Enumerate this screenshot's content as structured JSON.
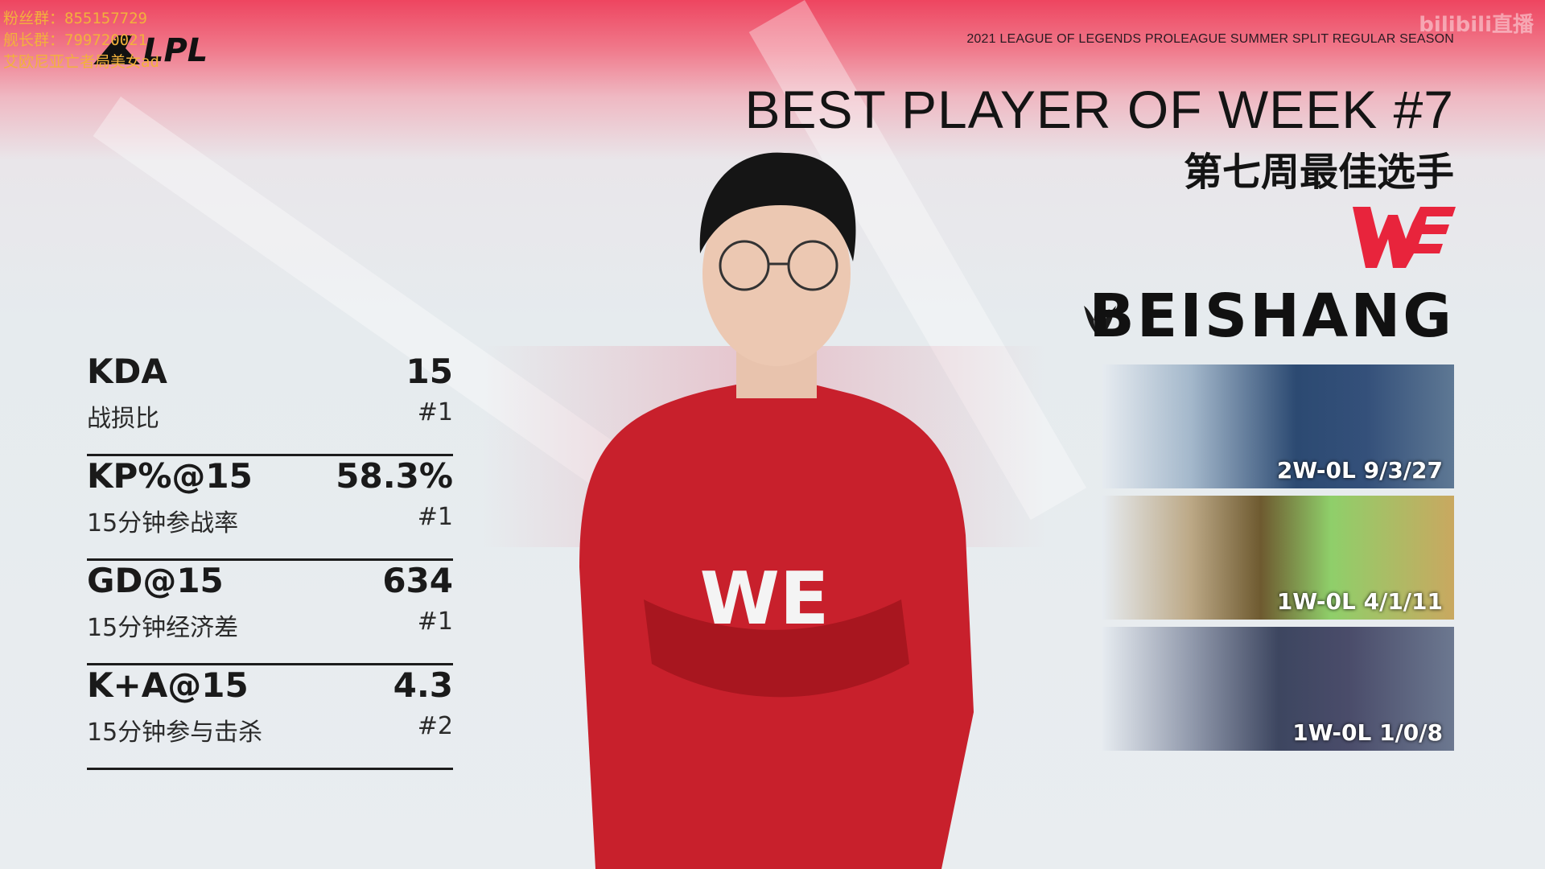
{
  "stream_overlay": [
    "粉丝群：855157729",
    "舰长群：799720021",
    "艾欧尼亚亡者局美女ad"
  ],
  "watermark": "bilibili直播",
  "logo": "LPL",
  "season": "2021 LEAGUE OF LEGENDS PROLEAGUE SUMMER SPLIT REGULAR SEASON",
  "title": "BEST PLAYER OF WEEK #7",
  "subtitle": "第七周最佳选手",
  "team_logo": "WE",
  "player": {
    "name": "BEISHANG",
    "role_icon": "jungle-icon"
  },
  "colors": {
    "accent": "#e8243c",
    "text": "#141414"
  },
  "stats": [
    {
      "label": "KDA",
      "value": "15",
      "sub": "战损比",
      "rank": "#1"
    },
    {
      "label": "KP%@15",
      "value": "58.3%",
      "sub": "15分钟参战率",
      "rank": "#1"
    },
    {
      "label": "GD@15",
      "value": "634",
      "sub": "15分钟经济差",
      "rank": "#1"
    },
    {
      "label": "K+A@15",
      "value": "4.3",
      "sub": "15分钟参与击杀",
      "rank": "#2"
    }
  ],
  "champions": [
    {
      "record": "2W-0L 9/3/27"
    },
    {
      "record": "1W-0L 4/1/11"
    },
    {
      "record": "1W-0L 1/0/8"
    }
  ]
}
